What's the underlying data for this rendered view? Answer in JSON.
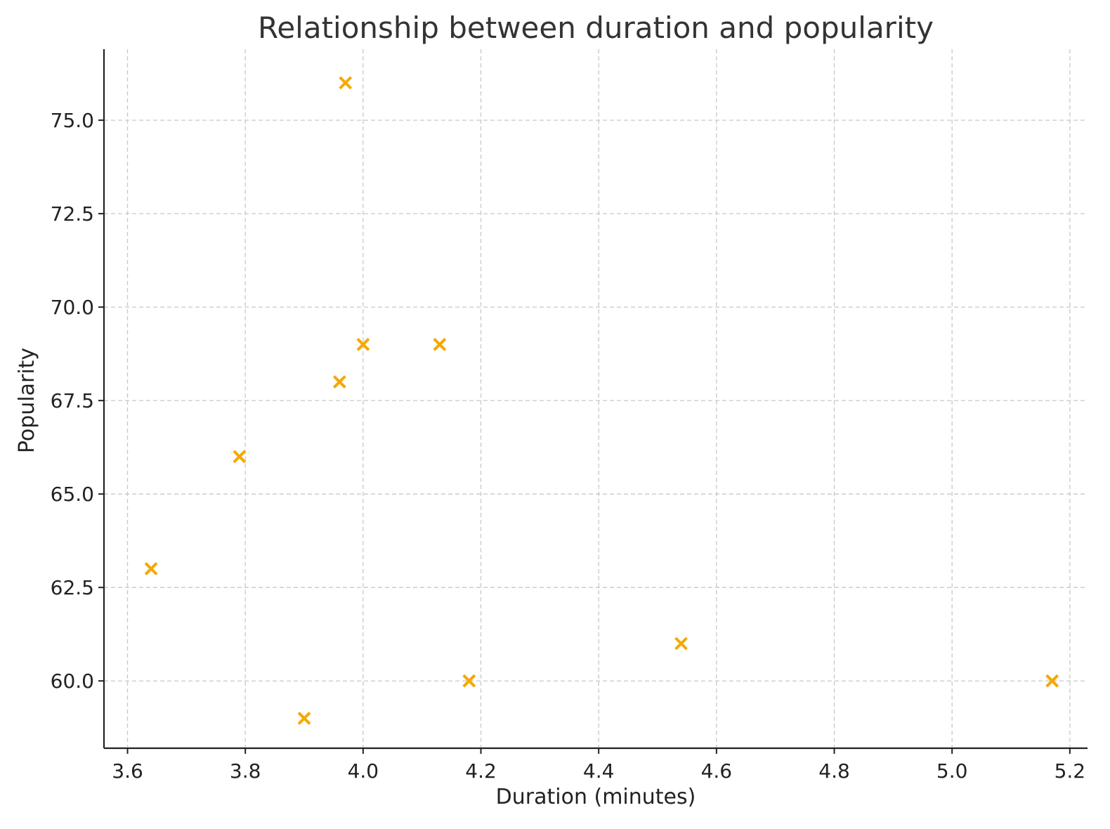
{
  "chart_data": {
    "type": "scatter",
    "title": "Relationship between duration and popularity",
    "xlabel": "Duration (minutes)",
    "ylabel": "Popularity",
    "xlim": [
      3.56,
      5.23
    ],
    "ylim": [
      58.2,
      76.9
    ],
    "xticks": [
      3.6,
      3.8,
      4.0,
      4.2,
      4.4,
      4.6,
      4.8,
      5.0,
      5.2
    ],
    "xtick_labels": [
      "3.6",
      "3.8",
      "4.0",
      "4.2",
      "4.4",
      "4.6",
      "4.8",
      "5.0",
      "5.2"
    ],
    "yticks": [
      60.0,
      62.5,
      65.0,
      67.5,
      70.0,
      72.5,
      75.0
    ],
    "ytick_labels": [
      "60.0",
      "62.5",
      "65.0",
      "67.5",
      "70.0",
      "72.5",
      "75.0"
    ],
    "grid": true,
    "marker": "x",
    "color": "#f5a800",
    "points": [
      {
        "x": 3.64,
        "y": 63
      },
      {
        "x": 3.79,
        "y": 66
      },
      {
        "x": 3.9,
        "y": 59
      },
      {
        "x": 3.96,
        "y": 68
      },
      {
        "x": 3.97,
        "y": 76
      },
      {
        "x": 4.0,
        "y": 69
      },
      {
        "x": 4.13,
        "y": 69
      },
      {
        "x": 4.18,
        "y": 60
      },
      {
        "x": 4.54,
        "y": 61
      },
      {
        "x": 5.17,
        "y": 60
      }
    ]
  }
}
